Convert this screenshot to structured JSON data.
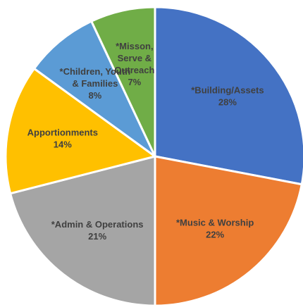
{
  "chart_data": {
    "type": "pie",
    "title": "",
    "slices": [
      {
        "label_lines": [
          "*Building/Assets"
        ],
        "label": "*Building/Assets",
        "value": 28,
        "value_label": "28%",
        "color": "#4472C4"
      },
      {
        "label_lines": [
          "*Music & Worship"
        ],
        "label": "*Music & Worship",
        "value": 22,
        "value_label": "22%",
        "color": "#ED7D31"
      },
      {
        "label_lines": [
          "*Admin & Operations"
        ],
        "label": "*Admin & Operations",
        "value": 21,
        "value_label": "21%",
        "color": "#A5A5A5"
      },
      {
        "label_lines": [
          "Apportionments"
        ],
        "label": "Apportionments",
        "value": 14,
        "value_label": "14%",
        "color": "#FFC000"
      },
      {
        "label_lines": [
          "*Children, Youth",
          "& Families"
        ],
        "label": "*Children, Youth & Families",
        "value": 8,
        "value_label": "8%",
        "color": "#5B9BD5"
      },
      {
        "label_lines": [
          "*Misson,",
          "Serve &",
          "Outreach"
        ],
        "label": "*Misson, Serve & Outreach",
        "value": 7,
        "value_label": "7%",
        "color": "#70AD47"
      }
    ]
  }
}
